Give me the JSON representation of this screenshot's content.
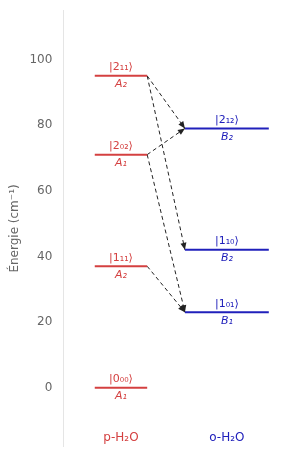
{
  "chart_data": {
    "type": "energy_levels",
    "y_label": "Énergie (cm⁻¹)",
    "ylim": [
      -18,
      115
    ],
    "yticks": [
      0,
      20,
      40,
      60,
      80,
      100
    ],
    "grid": false,
    "tick_labels": "y",
    "series": [
      {
        "name": "p-H₂O",
        "color": "#d44040",
        "values": [
          0,
          37,
          71,
          95
        ],
        "labels": [
          "|0₀₀⟩",
          "|1₁₁⟩",
          "|2₀₂⟩",
          "|2₁₁⟩"
        ],
        "symmetries": [
          "A₁",
          "A₂",
          "A₁",
          "A₂"
        ]
      },
      {
        "name": "o-H₂O",
        "color": "#2020bb",
        "values": [
          23,
          42,
          79
        ],
        "labels": [
          "|1₀₁⟩",
          "|1₁₀⟩",
          "|2₁₂⟩"
        ],
        "symmetries": [
          "B₁",
          "B₂",
          "B₂"
        ]
      }
    ],
    "arrow_color": "#222222",
    "arrows": [
      {
        "from": 95,
        "to": 79
      },
      {
        "from": 95,
        "to": 42
      },
      {
        "from": 71,
        "to": 79
      },
      {
        "from": 71,
        "to": 23
      },
      {
        "from": 37,
        "to": 23
      }
    ]
  }
}
